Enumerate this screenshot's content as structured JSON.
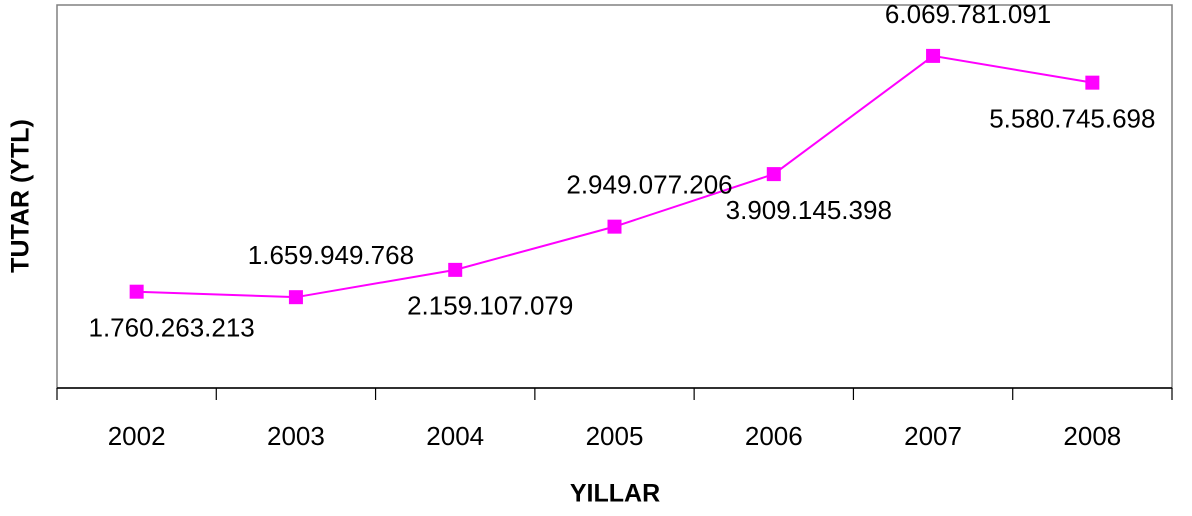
{
  "chart_data": {
    "type": "line",
    "x_label": "YILLAR",
    "y_label": "TUTAR (YTL)",
    "categories": [
      "2002",
      "2003",
      "2004",
      "2005",
      "2006",
      "2007",
      "2008"
    ],
    "series": [
      {
        "color": "#ff00ff",
        "values": [
          1760263213,
          1659949768,
          2159107079,
          2949077206,
          3909145398,
          6069781091,
          5580745698
        ],
        "value_labels": [
          "1.760.263.213",
          "1.659.949.768",
          "2.159.107.079",
          "2.949.077.206",
          "3.909.145.398",
          "6.069.781.091",
          "5.580.745.698"
        ]
      }
    ],
    "ylim": [
      0,
      7000000000
    ]
  }
}
